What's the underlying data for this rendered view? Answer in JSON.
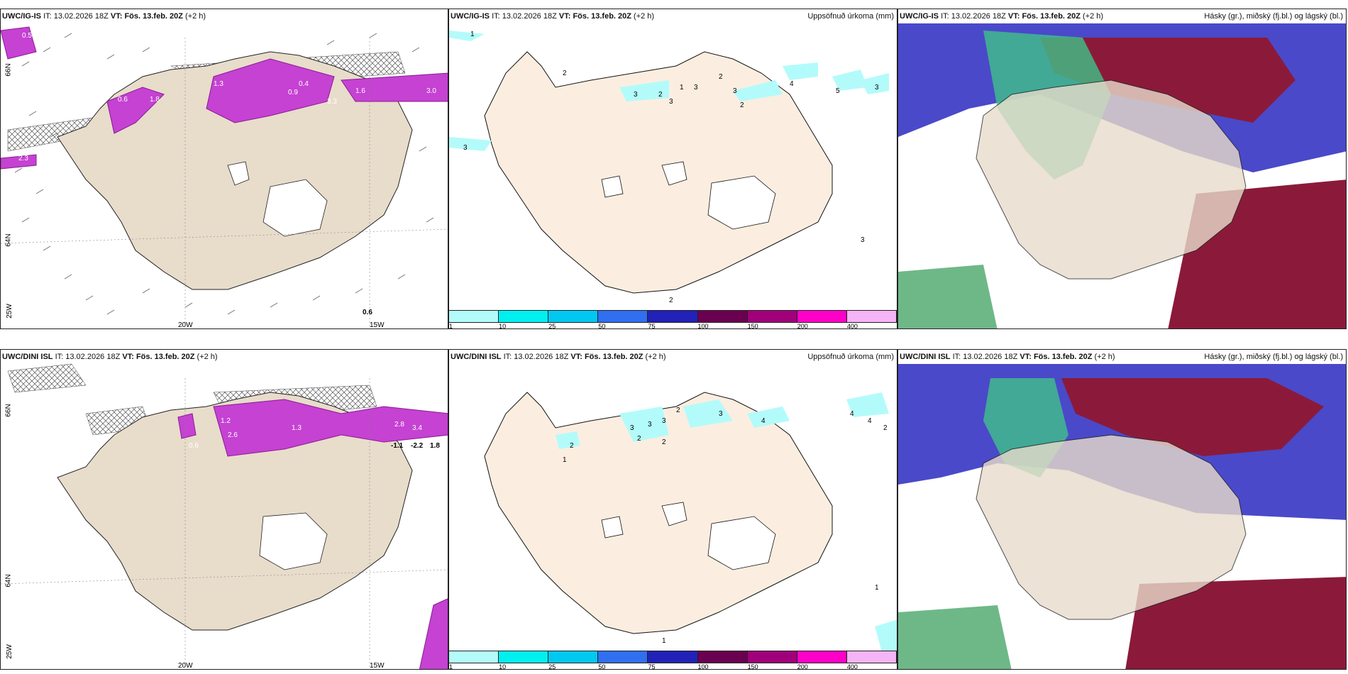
{
  "panels": {
    "p1": {
      "model": "UWC/IG-IS",
      "it_prefix": "IT:",
      "it": "13.02.2026 18Z",
      "vt_prefix": "VT:",
      "vt": "Fös. 13.feb. 20Z",
      "lead": "(+2 h)"
    },
    "p2": {
      "model": "UWC/IG-IS",
      "it_prefix": "IT:",
      "it": "13.02.2026 18Z",
      "vt_prefix": "VT:",
      "vt": "Fös. 13.feb. 20Z",
      "lead": "(+2 h)",
      "title": "Uppsöfnuð úrkoma (mm)"
    },
    "p3": {
      "model": "UWC/IG-IS",
      "it_prefix": "IT:",
      "it": "13.02.2026 18Z",
      "vt_prefix": "VT:",
      "vt": "Fös. 13.feb. 20Z",
      "lead": "(+2 h)",
      "title": "Hásky (gr.), miðský (fj.bl.) og lágský (bl.)"
    },
    "p4": {
      "model": "UWC/DINI ISL",
      "it_prefix": "IT:",
      "it": "13.02.2026 18Z",
      "vt_prefix": "VT:",
      "vt": "Fös. 13.feb. 20Z",
      "lead": "(+2 h)"
    },
    "p5": {
      "model": "UWC/DINI ISL",
      "it_prefix": "IT:",
      "it": "13.02.2026 18Z",
      "vt_prefix": "VT:",
      "vt": "Fös. 13.feb. 20Z",
      "lead": "(+2 h)",
      "title": "Uppsöfnuð úrkoma (mm)"
    },
    "p6": {
      "model": "UWC/DINI ISL",
      "it_prefix": "IT:",
      "it": "13.02.2026 18Z",
      "vt_prefix": "VT:",
      "vt": "Fös. 13.feb. 20Z",
      "lead": "(+2 h)",
      "title": "Hásky (gr.), miðský (fj.bl.) og lágský (bl.)"
    }
  },
  "colorbar": {
    "colors": [
      "#b3fbfb",
      "#00f0f0",
      "#00c8f0",
      "#2f6ff0",
      "#2222b8",
      "#6a0050",
      "#a0007a",
      "#ff00c8",
      "#f5b4f5"
    ],
    "labels": [
      "1",
      "10",
      "25",
      "50",
      "75",
      "100",
      "150",
      "200",
      "400"
    ]
  },
  "axes": {
    "lat_labels": [
      "66N",
      "64N"
    ],
    "lon_labels": [
      "20W",
      "15W"
    ],
    "edge_label": "25W"
  },
  "annotations": {
    "p1": [
      "0.5",
      "0.6",
      "1.8",
      "1.3",
      "0.9",
      "0.4",
      "3.3",
      "1.6",
      "3.0",
      "2.3",
      "0.6"
    ],
    "p2": [
      "1",
      "3",
      "2",
      "3",
      "2",
      "3",
      "1",
      "3",
      "2",
      "3",
      "4",
      "5",
      "3",
      "2",
      "3",
      "2"
    ],
    "p4": [
      "1.2",
      "2.6",
      "1.3",
      "2.8",
      "3.4",
      "-1.1",
      "-2.2",
      "1.8",
      "0.6"
    ],
    "p5": [
      "1",
      "2",
      "3",
      "2",
      "3",
      "3",
      "2",
      "2",
      "3",
      "4",
      "4",
      "4",
      "2",
      "1",
      "1"
    ]
  }
}
